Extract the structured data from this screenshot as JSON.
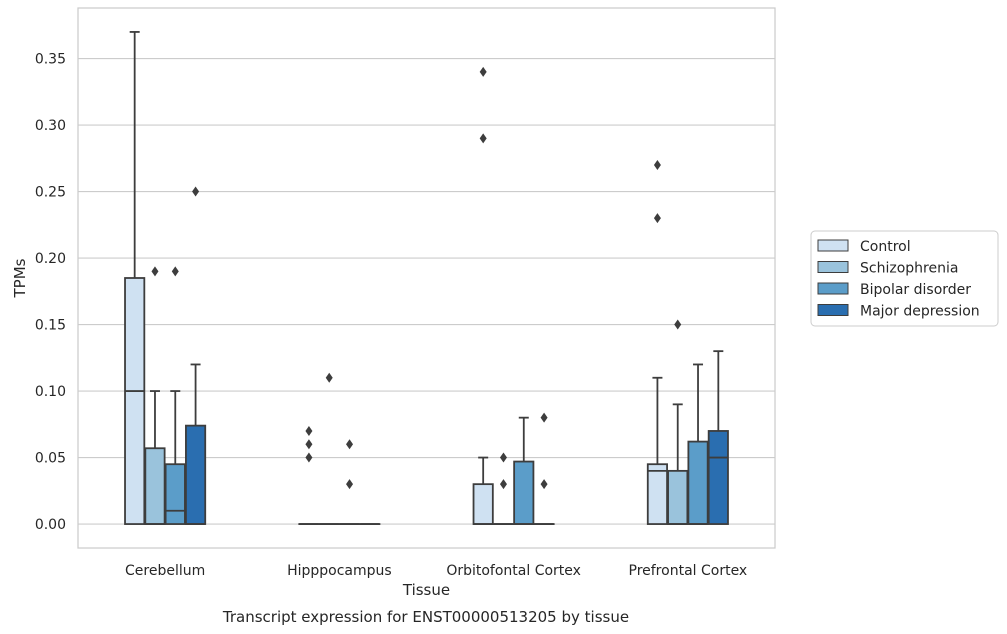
{
  "caption": "Transcript expression for ENST00000513205 by tissue",
  "chart_data": {
    "type": "box",
    "xlabel": "Tissue",
    "ylabel": "TPMs",
    "ylim": [
      -0.018,
      0.388
    ],
    "yticks": [
      0.0,
      0.05,
      0.1,
      0.15,
      0.2,
      0.25,
      0.3,
      0.35
    ],
    "ytick_labels": [
      "0.00",
      "0.05",
      "0.10",
      "0.15",
      "0.20",
      "0.25",
      "0.30",
      "0.35"
    ],
    "grid": "horizontal",
    "legend_position": "right",
    "categories": [
      "Cerebellum",
      "Hipppocampus",
      "Orbitofontal Cortex",
      "Prefrontal Cortex"
    ],
    "series": [
      {
        "name": "Control",
        "color": "#cfe1f2",
        "boxes": [
          {
            "whisker_low": 0.0,
            "q1": 0.0,
            "median": 0.1,
            "q3": 0.185,
            "whisker_high": 0.37,
            "outliers": []
          },
          {
            "whisker_low": 0.0,
            "q1": 0.0,
            "median": 0.0,
            "q3": 0.0,
            "whisker_high": 0.0,
            "outliers": [
              0.05,
              0.06,
              0.07
            ]
          },
          {
            "whisker_low": 0.0,
            "q1": 0.0,
            "median": 0.0,
            "q3": 0.03,
            "whisker_high": 0.05,
            "outliers": [
              0.29,
              0.34
            ]
          },
          {
            "whisker_low": 0.0,
            "q1": 0.0,
            "median": 0.04,
            "q3": 0.045,
            "whisker_high": 0.11,
            "outliers": [
              0.23,
              0.27
            ]
          }
        ]
      },
      {
        "name": "Schizophrenia",
        "color": "#9ac3dc",
        "boxes": [
          {
            "whisker_low": 0.0,
            "q1": 0.0,
            "median": 0.0,
            "q3": 0.057,
            "whisker_high": 0.1,
            "outliers": [
              0.19
            ]
          },
          {
            "whisker_low": 0.0,
            "q1": 0.0,
            "median": 0.0,
            "q3": 0.0,
            "whisker_high": 0.0,
            "outliers": [
              0.11
            ]
          },
          {
            "whisker_low": 0.0,
            "q1": 0.0,
            "median": 0.0,
            "q3": 0.0,
            "whisker_high": 0.0,
            "outliers": [
              0.03,
              0.05
            ]
          },
          {
            "whisker_low": 0.0,
            "q1": 0.0,
            "median": 0.0,
            "q3": 0.04,
            "whisker_high": 0.09,
            "outliers": [
              0.15
            ]
          }
        ]
      },
      {
        "name": "Bipolar disorder",
        "color": "#5b9dc9",
        "boxes": [
          {
            "whisker_low": 0.0,
            "q1": 0.0,
            "median": 0.01,
            "q3": 0.045,
            "whisker_high": 0.1,
            "outliers": [
              0.19
            ]
          },
          {
            "whisker_low": 0.0,
            "q1": 0.0,
            "median": 0.0,
            "q3": 0.0,
            "whisker_high": 0.0,
            "outliers": [
              0.03,
              0.06
            ]
          },
          {
            "whisker_low": 0.0,
            "q1": 0.0,
            "median": 0.0,
            "q3": 0.047,
            "whisker_high": 0.08,
            "outliers": []
          },
          {
            "whisker_low": 0.0,
            "q1": 0.0,
            "median": 0.0,
            "q3": 0.062,
            "whisker_high": 0.12,
            "outliers": []
          }
        ]
      },
      {
        "name": "Major depression",
        "color": "#2a6eb0",
        "boxes": [
          {
            "whisker_low": 0.0,
            "q1": 0.0,
            "median": 0.0,
            "q3": 0.074,
            "whisker_high": 0.12,
            "outliers": [
              0.25
            ]
          },
          {
            "whisker_low": 0.0,
            "q1": 0.0,
            "median": 0.0,
            "q3": 0.0,
            "whisker_high": 0.0,
            "outliers": []
          },
          {
            "whisker_low": 0.0,
            "q1": 0.0,
            "median": 0.0,
            "q3": 0.0,
            "whisker_high": 0.0,
            "outliers": [
              0.03,
              0.08
            ]
          },
          {
            "whisker_low": 0.0,
            "q1": 0.0,
            "median": 0.05,
            "q3": 0.07,
            "whisker_high": 0.13,
            "outliers": []
          }
        ]
      }
    ]
  }
}
